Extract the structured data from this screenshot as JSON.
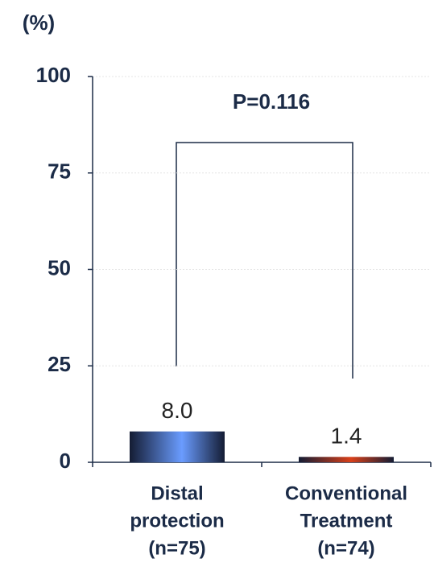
{
  "chart_data": {
    "type": "bar",
    "y_label": "(%)",
    "annotation": "P=0.116",
    "categories": [
      [
        "Distal",
        "protection",
        "(n=75)"
      ],
      [
        "Conventional",
        "Treatment",
        "(n=74)"
      ]
    ],
    "values": [
      8,
      1.4
    ],
    "value_labels": [
      "8.0",
      "1.4"
    ],
    "colors": [
      "#6a9cff",
      "#d8401a"
    ],
    "ylim": [
      0,
      100
    ],
    "yticks": [
      0,
      25,
      50,
      75,
      100
    ],
    "grid": true
  }
}
